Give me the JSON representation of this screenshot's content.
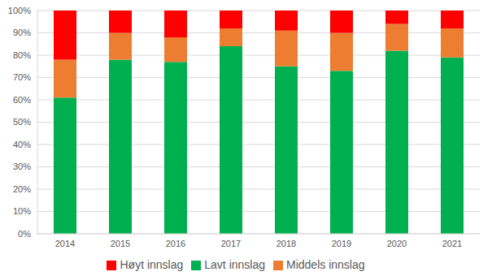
{
  "chart_data": {
    "type": "bar",
    "stacked": true,
    "grid": true,
    "legend": "bottom",
    "categories": [
      "2014",
      "2015",
      "2016",
      "2017",
      "2018",
      "2019",
      "2020",
      "2021"
    ],
    "series": [
      {
        "name": "Lavt innslag",
        "color": "#00b050",
        "values": [
          61,
          78,
          77,
          84,
          75,
          73,
          82,
          79
        ]
      },
      {
        "name": "Middels innslag",
        "color": "#ed7d31",
        "values": [
          17,
          12,
          11,
          8,
          16,
          17,
          12,
          13
        ]
      },
      {
        "name": "Høyt innslag",
        "color": "#ff0000",
        "values": [
          22,
          10,
          12,
          8,
          9,
          10,
          6,
          8
        ]
      }
    ],
    "ylim": [
      0,
      100
    ],
    "yticks": [
      {
        "value": 0,
        "label": "0%"
      },
      {
        "value": 10,
        "label": "10%"
      },
      {
        "value": 20,
        "label": "20%"
      },
      {
        "value": 30,
        "label": "30%"
      },
      {
        "value": 40,
        "label": "40%"
      },
      {
        "value": 50,
        "label": "50%"
      },
      {
        "value": 60,
        "label": "60%"
      },
      {
        "value": 70,
        "label": "70%"
      },
      {
        "value": 80,
        "label": "80%"
      },
      {
        "value": 90,
        "label": "90%"
      },
      {
        "value": 100,
        "label": "100%"
      }
    ]
  }
}
